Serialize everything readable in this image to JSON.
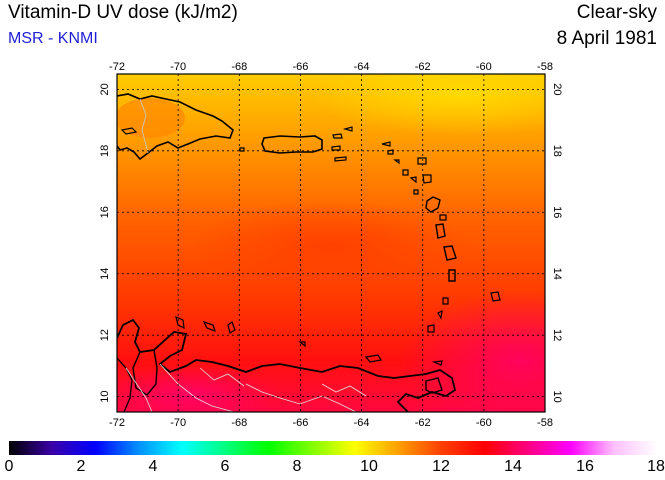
{
  "header": {
    "title": "Vitamin-D UV dose (kJ/m2)",
    "subtitle": "MSR - KNMI",
    "mode": "Clear-sky",
    "date": "8 April 1981"
  },
  "map": {
    "lon_ticks": [
      "-72",
      "-70",
      "-68",
      "-66",
      "-64",
      "-62",
      "-60",
      "-58"
    ],
    "lat_ticks": [
      "10",
      "12",
      "14",
      "16",
      "18",
      "20"
    ],
    "lon_range": [
      -72,
      -58
    ],
    "lat_range": [
      9.5,
      20.5
    ],
    "grid": true
  },
  "colorbar": {
    "labels": [
      "0",
      "2",
      "4",
      "6",
      "8",
      "10",
      "12",
      "14",
      "16",
      "18"
    ],
    "range": [
      0,
      18
    ],
    "colors": [
      "#000000",
      "#3a00a8",
      "#0000ff",
      "#0090ff",
      "#00ffff",
      "#00ff80",
      "#00ff00",
      "#80ff00",
      "#ffff00",
      "#ffa000",
      "#ff4000",
      "#ff0000",
      "#ff0080",
      "#ff00ff",
      "#ffc0ff",
      "#ffffff"
    ]
  }
}
